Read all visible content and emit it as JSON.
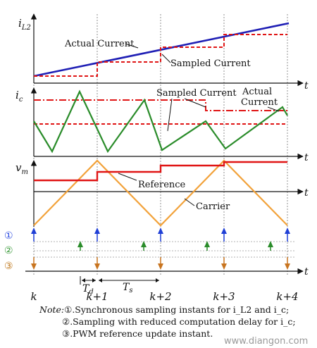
{
  "figure": {
    "panel_current": {
      "axis_symbol": "i",
      "axis_subscript": "L2",
      "t_label": "t",
      "actual_label": "Actual Current",
      "sampled_label": "Sampled Current"
    },
    "panel_cap_current": {
      "axis_symbol": "i",
      "axis_subscript": "c",
      "t_label": "t",
      "sampled_label": "Sampled Current",
      "actual_label_line1": "Actual",
      "actual_label_line2": "Current"
    },
    "panel_modulation": {
      "axis_symbol": "v",
      "axis_subscript": "m",
      "t_label": "t",
      "reference_label": "Reference",
      "carrier_label": "Carrier"
    },
    "panel_events": {
      "t_label": "t",
      "markers": [
        "①",
        "②",
        "③"
      ],
      "td_symbol": "T",
      "td_subscript": "d",
      "ts_symbol": "T",
      "ts_subscript": "s"
    },
    "instants": [
      "k",
      "k+1",
      "k+2",
      "k+3",
      "k+4"
    ],
    "note": {
      "prefix": "Note:",
      "line1": "①.Synchronous sampling instants for i_L2 and i_c;",
      "line2": "②.Sampling with reduced computation delay for i_c;",
      "line3": "③.PWM reference update instant."
    },
    "watermark": "www.diangon.com",
    "colors": {
      "actual_blue": "#1f1fb5",
      "sampled_red": "#e01515",
      "green": "#2a8c2a",
      "reference_red": "#e01515",
      "carrier_orange": "#f2a23a",
      "arrow_blue": "#1f3fd6",
      "arrow_green": "#2a8c2a",
      "arrow_orange": "#c8741f",
      "marker1": "#2a4ae0",
      "marker2": "#3a9a3a",
      "marker3": "#c07a20"
    }
  }
}
